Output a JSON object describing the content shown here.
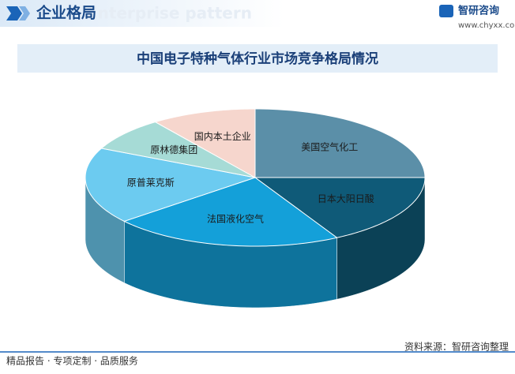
{
  "header": {
    "title": "企业格局",
    "subtitle": "Enterprise pattern"
  },
  "logo": {
    "name": "智研咨询",
    "url": "www.chyxx.com"
  },
  "chart_data": {
    "type": "pie",
    "title": "中国电子特种气体行业市场竞争格局情况",
    "categories": [
      "美国空气化工",
      "日本大阳日酸",
      "法国液化空气",
      "原普莱克斯",
      "原林德集团",
      "国内本土企业"
    ],
    "values": [
      25,
      17,
      22,
      18,
      8,
      10
    ],
    "colors": [
      "#5b8fa8",
      "#0f5a78",
      "#14a0d9",
      "#6ccbf0",
      "#a6dbd6",
      "#f6d6cd"
    ]
  },
  "footer": {
    "left": "精品报告 · 专项定制 · 品质服务",
    "source": "资料来源：智研咨询整理"
  }
}
